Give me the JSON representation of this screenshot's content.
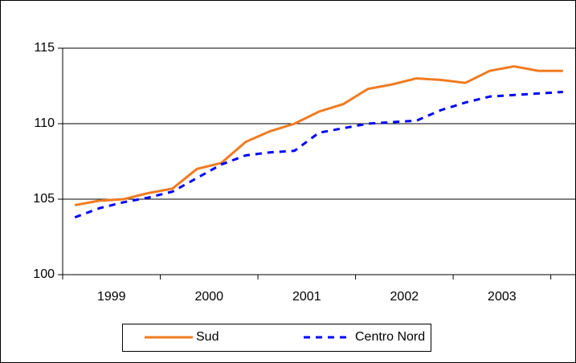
{
  "chart_data": {
    "type": "line",
    "categories": [
      null,
      "1999",
      null,
      null,
      null,
      "2000",
      null,
      null,
      null,
      "2001",
      null,
      null,
      null,
      "2002",
      null,
      null,
      null,
      "2003",
      null,
      null,
      null
    ],
    "series": [
      {
        "name": "Sud",
        "color": "#f07b20",
        "dash": false,
        "values": [
          104.6,
          104.9,
          105.0,
          105.4,
          105.7,
          107.0,
          107.4,
          108.8,
          109.5,
          110.0,
          110.8,
          111.3,
          112.3,
          112.6,
          113.0,
          112.9,
          112.7,
          113.5,
          113.8,
          113.5,
          113.5
        ]
      },
      {
        "name": "Centro Nord",
        "color": "#0000ff",
        "dash": true,
        "values": [
          103.8,
          104.4,
          104.8,
          105.1,
          105.5,
          106.4,
          107.3,
          107.9,
          108.1,
          108.2,
          109.4,
          109.7,
          110.0,
          110.1,
          110.2,
          110.9,
          111.4,
          111.8,
          111.9,
          112.0,
          112.1
        ]
      }
    ],
    "ylim": [
      100,
      115
    ],
    "yticks": [
      100,
      105,
      110,
      115
    ],
    "grid": true,
    "legend": "bottom"
  }
}
